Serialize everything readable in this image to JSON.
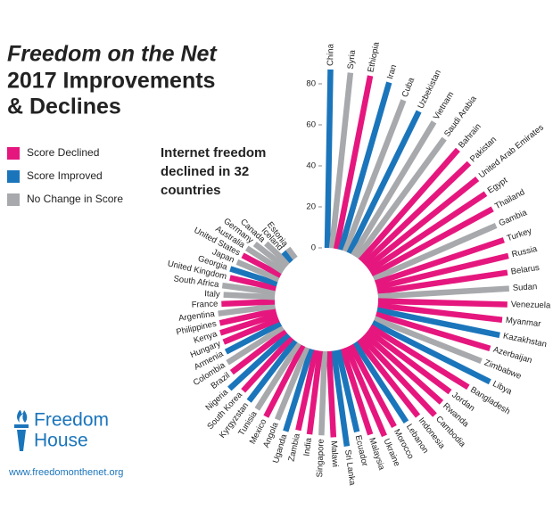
{
  "chart_data": {
    "type": "radial-bar",
    "title": [
      "Freedom on the Net",
      "2017 Improvements",
      "& Declines"
    ],
    "annotation": [
      "Internet freedom",
      "declined in 32",
      "countries"
    ],
    "legend": [
      {
        "name": "Score Declined",
        "color": "#e5177e"
      },
      {
        "name": "Score Improved",
        "color": "#1b75bb"
      },
      {
        "name": "No Change in Score",
        "color": "#a7a9ac"
      }
    ],
    "categories": [
      "China",
      "Syria",
      "Ethiopia",
      "Iran",
      "Cuba",
      "Uzbekistan",
      "Vietnam",
      "Saudi Arabia",
      "Bahrain",
      "Pakistan",
      "United Arab Emirates",
      "Egypt",
      "Thailand",
      "Gambia",
      "Turkey",
      "Russia",
      "Belarus",
      "Sudan",
      "Venezuela",
      "Myanmar",
      "Kazakhstan",
      "Azerbaijan",
      "Zimbabwe",
      "Libya",
      "Bangladesh",
      "Jordan",
      "Rwanda",
      "Cambodia",
      "Indonesia",
      "Lebanon",
      "Morocco",
      "Ukraine",
      "Malaysia",
      "Ecuador",
      "Sri Lanka",
      "Malawi",
      "Singapore",
      "India",
      "Zambia",
      "Uganda",
      "Angola",
      "Mexico",
      "Tunisia",
      "Kyrgyzstan",
      "South Korea",
      "Nigeria",
      "Brazil",
      "Colombia",
      "Armenia",
      "Hungary",
      "Kenya",
      "Philippines",
      "Argentina",
      "France",
      "Italy",
      "South Africa",
      "United Kingdom",
      "Georgia",
      "Japan",
      "United States",
      "Australia",
      "Germany",
      "Canada",
      "Iceland",
      "Estonia"
    ],
    "values": [
      87,
      86,
      86,
      85,
      79,
      77,
      76,
      72,
      72,
      71,
      69,
      68,
      67,
      65,
      66,
      66,
      64,
      64,
      63,
      61,
      61,
      58,
      56,
      64,
      56,
      50,
      50,
      52,
      47,
      46,
      45,
      47,
      44,
      41,
      47,
      42,
      41,
      41,
      40,
      42,
      38,
      39,
      38,
      37,
      35,
      39,
      33,
      32,
      30,
      29,
      29,
      28,
      28,
      26,
      25,
      26,
      23,
      24,
      22,
      21,
      21,
      19,
      15,
      6,
      6
    ],
    "colors": [
      "#1b75bb",
      "#a7a9ac",
      "#e5177e",
      "#1b75bb",
      "#a7a9ac",
      "#1b75bb",
      "#a7a9ac",
      "#a7a9ac",
      "#e5177e",
      "#e5177e",
      "#e5177e",
      "#e5177e",
      "#e5177e",
      "#a7a9ac",
      "#e5177e",
      "#e5177e",
      "#e5177e",
      "#a7a9ac",
      "#e5177e",
      "#e5177e",
      "#1b75bb",
      "#e5177e",
      "#a7a9ac",
      "#1b75bb",
      "#e5177e",
      "#e5177e",
      "#e5177e",
      "#e5177e",
      "#e5177e",
      "#1b75bb",
      "#e5177e",
      "#e5177e",
      "#e5177e",
      "#1b75bb",
      "#1b75bb",
      "#e5177e",
      "#a7a9ac",
      "#e5177e",
      "#e5177e",
      "#1b75bb",
      "#a7a9ac",
      "#e5177e",
      "#a7a9ac",
      "#1b75bb",
      "#e5177e",
      "#1b75bb",
      "#e5177e",
      "#a7a9ac",
      "#1b75bb",
      "#e5177e",
      "#e5177e",
      "#e5177e",
      "#a7a9ac",
      "#e5177e",
      "#a7a9ac",
      "#a7a9ac",
      "#e5177e",
      "#1b75bb",
      "#a7a9ac",
      "#e5177e",
      "#a7a9ac",
      "#a7a9ac",
      "#a7a9ac",
      "#1b75bb",
      "#a7a9ac"
    ],
    "ylim": [
      0,
      90
    ],
    "yticks": [
      0,
      20,
      40,
      60,
      80
    ],
    "logo": [
      "Freedom",
      "House"
    ],
    "url": "www.freedomonthenet.org"
  }
}
